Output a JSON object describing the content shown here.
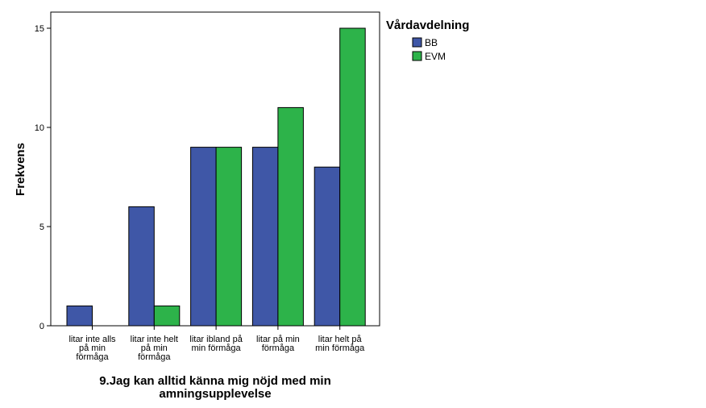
{
  "chart_data": {
    "type": "bar",
    "categories": [
      [
        "litar inte alls",
        "på min",
        "förmåga"
      ],
      [
        "litar inte helt",
        "på min",
        "förmåga"
      ],
      [
        "litar ibland på",
        "min förmåga"
      ],
      [
        "litar på min",
        "förmåga"
      ],
      [
        "litar helt på",
        "min förmåga"
      ]
    ],
    "series": [
      {
        "name": "BB",
        "values": [
          1,
          6,
          9,
          9,
          8
        ],
        "color": "#3f57a7"
      },
      {
        "name": "EVM",
        "values": [
          0,
          1,
          9,
          11,
          15
        ],
        "color": "#2db34a"
      }
    ],
    "xlabel": [
      "9.Jag kan alltid känna mig nöjd med min",
      "amningsupplevelse"
    ],
    "ylabel": "Frekvens",
    "ylim": [
      0,
      16
    ],
    "yticks": [
      0,
      5,
      10,
      15
    ],
    "grid": false,
    "legend": {
      "title": "Vårdavdelning",
      "placement": "right"
    }
  }
}
